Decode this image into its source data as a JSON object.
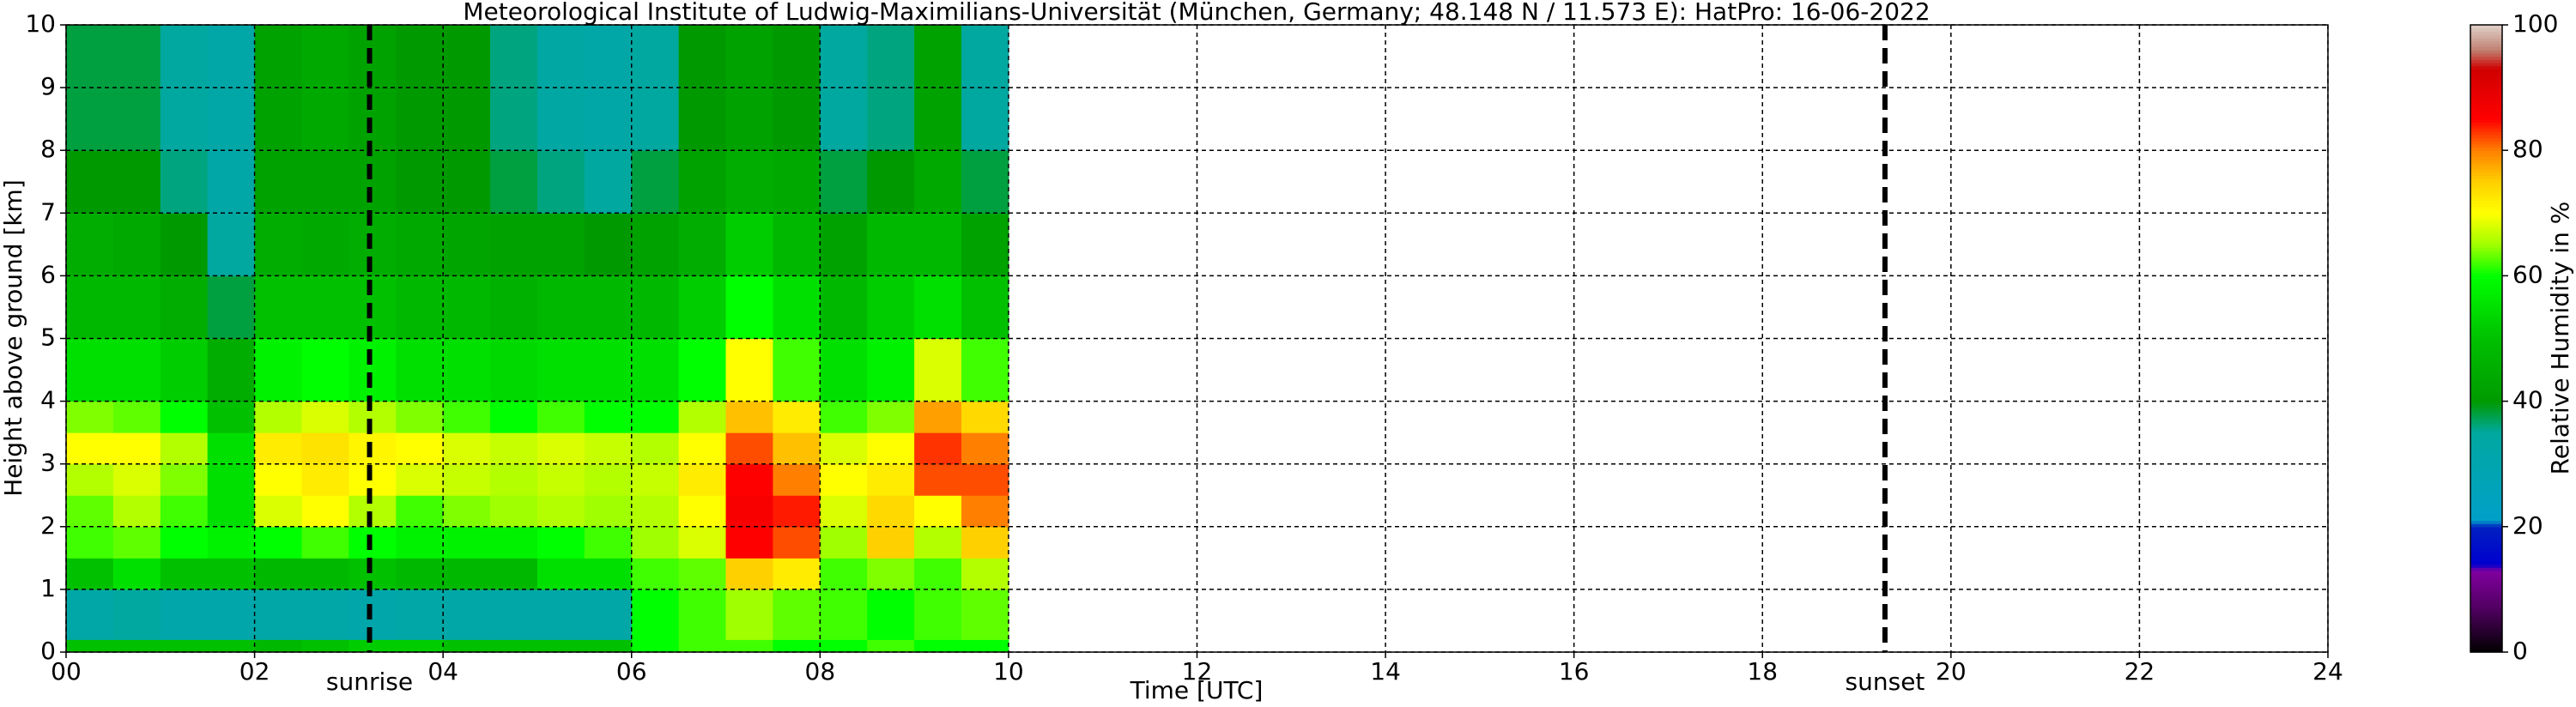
{
  "chart_data": {
    "type": "heatmap",
    "title": "Meteorological Institute of Ludwig-Maximilians-Universität (München, Germany; 48.148 N / 11.573 E):    HatPro: 16-06-2022",
    "xlabel": "Time [UTC]",
    "ylabel": "Height above ground [km]",
    "colorbar_label": "Relative Humidity in %",
    "x_edges": [
      0,
      0.5,
      1,
      1.5,
      2,
      2.5,
      3,
      3.5,
      4,
      4.5,
      5,
      5.5,
      6,
      6.5,
      7,
      7.5,
      8,
      8.5,
      9,
      9.5,
      10
    ],
    "y_edges": [
      0,
      0.2,
      1,
      1.5,
      2,
      2.5,
      3,
      3.5,
      4,
      5,
      6,
      7,
      8,
      10
    ],
    "z": [
      [
        50,
        50,
        50,
        50,
        48,
        50,
        52,
        52,
        50,
        50,
        50,
        50,
        60,
        62,
        62,
        60,
        60,
        62,
        60,
        60
      ],
      [
        33,
        35,
        32,
        32,
        33,
        33,
        32,
        33,
        33,
        33,
        33,
        33,
        60,
        62,
        65,
        63,
        62,
        60,
        62,
        63
      ],
      [
        50,
        55,
        50,
        50,
        48,
        48,
        50,
        48,
        48,
        48,
        55,
        55,
        62,
        63,
        75,
        72,
        62,
        64,
        62,
        66
      ],
      [
        62,
        63,
        60,
        58,
        60,
        62,
        60,
        58,
        58,
        58,
        60,
        62,
        65,
        68,
        85,
        82,
        65,
        75,
        66,
        75
      ],
      [
        63,
        66,
        62,
        55,
        68,
        70,
        66,
        62,
        64,
        65,
        66,
        65,
        66,
        70,
        86,
        84,
        68,
        74,
        70,
        80
      ],
      [
        66,
        68,
        64,
        55,
        70,
        72,
        70,
        68,
        67,
        66,
        67,
        66,
        67,
        72,
        85,
        80,
        70,
        72,
        82,
        82
      ],
      [
        70,
        70,
        66,
        55,
        72,
        73,
        71,
        70,
        68,
        67,
        68,
        67,
        66,
        70,
        82,
        76,
        68,
        70,
        83,
        80
      ],
      [
        64,
        63,
        60,
        50,
        66,
        68,
        66,
        64,
        62,
        60,
        62,
        60,
        60,
        66,
        76,
        72,
        62,
        64,
        78,
        74
      ],
      [
        55,
        55,
        52,
        45,
        58,
        60,
        58,
        55,
        55,
        54,
        55,
        55,
        55,
        60,
        70,
        62,
        55,
        58,
        68,
        62
      ],
      [
        48,
        48,
        45,
        38,
        50,
        50,
        50,
        48,
        48,
        46,
        48,
        48,
        48,
        52,
        60,
        55,
        48,
        52,
        55,
        50
      ],
      [
        45,
        44,
        40,
        35,
        45,
        44,
        45,
        44,
        43,
        42,
        42,
        40,
        42,
        45,
        52,
        48,
        42,
        48,
        48,
        42
      ],
      [
        40,
        40,
        36,
        33,
        42,
        42,
        42,
        40,
        40,
        38,
        36,
        35,
        38,
        42,
        45,
        44,
        38,
        40,
        44,
        38
      ],
      [
        38,
        38,
        35,
        33,
        42,
        44,
        42,
        40,
        40,
        36,
        34,
        33,
        35,
        40,
        42,
        40,
        35,
        36,
        42,
        35
      ]
    ],
    "xlim": [
      0,
      24
    ],
    "xticks": [
      {
        "value": 0,
        "label": "00"
      },
      {
        "value": 2,
        "label": "02"
      },
      {
        "value": 4,
        "label": "04"
      },
      {
        "value": 6,
        "label": "06"
      },
      {
        "value": 8,
        "label": "08"
      },
      {
        "value": 10,
        "label": "10"
      },
      {
        "value": 12,
        "label": "12"
      },
      {
        "value": 14,
        "label": "14"
      },
      {
        "value": 16,
        "label": "16"
      },
      {
        "value": 18,
        "label": "18"
      },
      {
        "value": 20,
        "label": "20"
      },
      {
        "value": 22,
        "label": "22"
      },
      {
        "value": 24,
        "label": "24"
      }
    ],
    "ylim": [
      0,
      10
    ],
    "yticks": [
      0,
      1,
      2,
      3,
      4,
      5,
      6,
      7,
      8,
      9,
      10
    ],
    "clim": [
      0,
      100
    ],
    "cticks": [
      0,
      20,
      40,
      60,
      80,
      100
    ],
    "colorscale": [
      [
        0,
        "#000000"
      ],
      [
        7,
        "#500060"
      ],
      [
        13,
        "#8000a0"
      ],
      [
        14,
        "#0000d0"
      ],
      [
        20,
        "#0020c0"
      ],
      [
        21,
        "#00a0c8"
      ],
      [
        35,
        "#00a8a0"
      ],
      [
        40,
        "#009a00"
      ],
      [
        50,
        "#00c000"
      ],
      [
        60,
        "#00ff00"
      ],
      [
        65,
        "#a0ff00"
      ],
      [
        70,
        "#ffff00"
      ],
      [
        75,
        "#ffd000"
      ],
      [
        80,
        "#ff8000"
      ],
      [
        85,
        "#ff0000"
      ],
      [
        93,
        "#d00000"
      ],
      [
        96,
        "#c08070"
      ],
      [
        100,
        "#e0d0c8"
      ]
    ],
    "grid": true,
    "annotations": [
      {
        "label": "sunrise",
        "x": 3.22
      },
      {
        "label": "sunset",
        "x": 19.3
      }
    ]
  }
}
